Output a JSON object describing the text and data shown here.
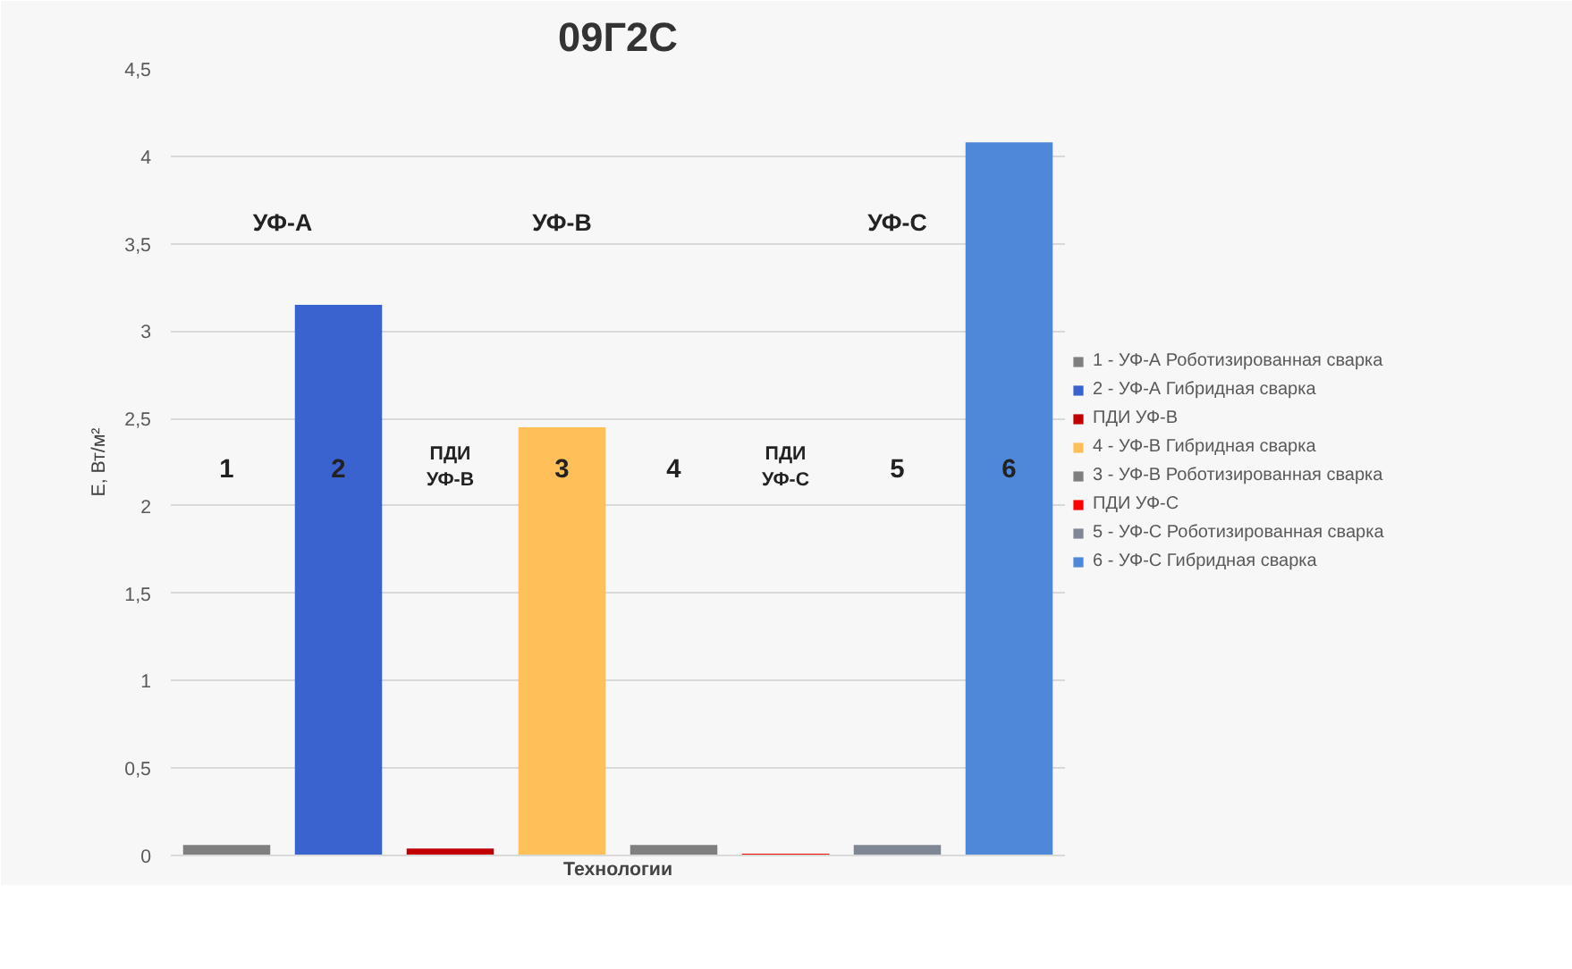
{
  "chart_data": {
    "type": "bar",
    "title": "09Г2С",
    "xlabel": "Технологии",
    "ylabel": "E, Вт/м²",
    "categories": [
      null,
      null,
      null,
      null,
      null,
      null,
      null,
      null
    ],
    "series": [
      {
        "name": "1 - УФ-А Роботизированная сварка",
        "color": "#7f7f7f",
        "values": [
          0.06,
          null,
          null,
          null,
          null,
          null,
          null,
          null
        ]
      },
      {
        "name": "2 - УФ-А Гибридная сварка",
        "color": "#3b63cf",
        "values": [
          null,
          3.15,
          null,
          null,
          null,
          null,
          null,
          null
        ]
      },
      {
        "name": "ПДИ УФ-В",
        "color": "#c00000",
        "values": [
          null,
          null,
          0.04,
          null,
          null,
          null,
          null,
          null
        ]
      },
      {
        "name": "4 - УФ-В Гибридная сварка",
        "color": "#ffc05a",
        "values": [
          null,
          null,
          null,
          2.45,
          null,
          null,
          null,
          null
        ]
      },
      {
        "name": "3 - УФ-В Роботизированная сварка",
        "color": "#7f7f7f",
        "values": [
          null,
          null,
          null,
          null,
          0.06,
          null,
          null,
          null
        ]
      },
      {
        "name": "ПДИ УФ-С",
        "color": "#ff0000",
        "values": [
          null,
          null,
          null,
          null,
          null,
          0.01,
          null,
          null
        ]
      },
      {
        "name": "5 - УФ-С Роботизированная сварка",
        "color": "#7f8795",
        "values": [
          null,
          null,
          null,
          null,
          null,
          null,
          0.06,
          null
        ]
      },
      {
        "name": "6 - УФ-С Гибридная сварка",
        "color": "#4f88d8",
        "values": [
          null,
          null,
          null,
          null,
          null,
          null,
          null,
          4.08
        ]
      }
    ],
    "ylim": [
      0,
      4.5
    ],
    "yticks": [
      {
        "value": 0,
        "label": "0"
      },
      {
        "value": 0.5,
        "label": "0,5"
      },
      {
        "value": 1,
        "label": "1"
      },
      {
        "value": 1.5,
        "label": "1,5"
      },
      {
        "value": 2,
        "label": "2"
      },
      {
        "value": 2.5,
        "label": "2,5"
      },
      {
        "value": 3,
        "label": "3"
      },
      {
        "value": 3.5,
        "label": "3,5"
      },
      {
        "value": 4,
        "label": "4"
      },
      {
        "value": 4.5,
        "label": "4,5"
      }
    ],
    "grid": "y",
    "legend": "right",
    "annotations": [
      "УФ-А",
      "УФ-В",
      "УФ-С",
      "1",
      "2",
      "ПДИ\nУФ-В",
      "3",
      "4",
      "ПДИ\nУФ-С",
      "5",
      "6"
    ]
  }
}
